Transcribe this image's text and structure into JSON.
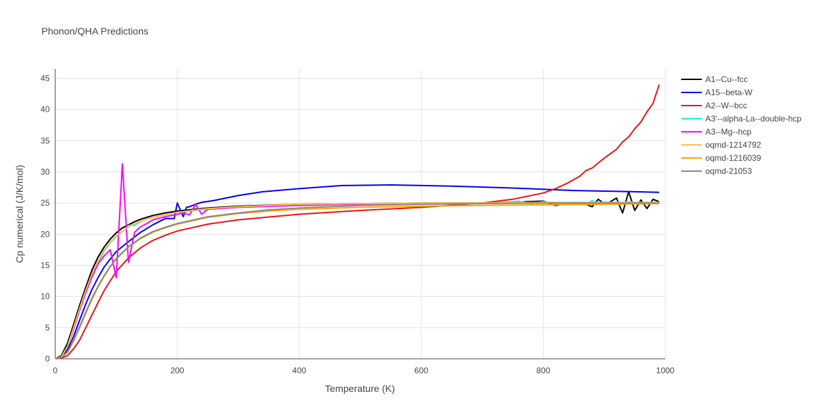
{
  "chart_data": {
    "type": "line",
    "title": "Phonon/QHA Predictions",
    "xlabel": "Temperature (K)",
    "ylabel": "Cp numerical (J/K/mol)",
    "xlim": [
      0,
      1000
    ],
    "ylim": [
      0,
      46.5
    ],
    "xticks": [
      0,
      200,
      400,
      600,
      800,
      1000
    ],
    "yticks": [
      0,
      5,
      10,
      15,
      20,
      25,
      30,
      35,
      40,
      45
    ],
    "grid": true,
    "legend": "right",
    "series": [
      {
        "name": "A1--Cu--fcc",
        "color": "#000000",
        "x": [
          0,
          10,
          20,
          30,
          40,
          50,
          60,
          70,
          80,
          90,
          100,
          110,
          120,
          130,
          140,
          150,
          160,
          180,
          200,
          250,
          300,
          400,
          500,
          600,
          700,
          800,
          820,
          850,
          870,
          880,
          890,
          900,
          910,
          920,
          930,
          940,
          950,
          960,
          970,
          980,
          990
        ],
        "y": [
          0,
          0.5,
          2.5,
          5.5,
          8.6,
          11.5,
          14.2,
          16.3,
          17.9,
          19.2,
          20.2,
          21.0,
          21.5,
          22.0,
          22.4,
          22.7,
          23.0,
          23.4,
          23.7,
          24.2,
          24.5,
          24.8,
          24.9,
          25.0,
          25.0,
          25.3,
          24.6,
          25.1,
          24.8,
          24.4,
          25.6,
          24.9,
          25.2,
          25.8,
          23.4,
          26.8,
          23.8,
          25.5,
          24.1,
          25.6,
          25.2
        ]
      },
      {
        "name": "A15--beta-W",
        "color": "#0000ee",
        "x": [
          0,
          10,
          20,
          30,
          40,
          50,
          60,
          70,
          80,
          90,
          100,
          120,
          140,
          160,
          180,
          195,
          200,
          210,
          215,
          220,
          230,
          240,
          260,
          280,
          300,
          340,
          400,
          470,
          550,
          650,
          750,
          850,
          900,
          950,
          990
        ],
        "y": [
          0,
          0.3,
          1.5,
          3.6,
          6.2,
          8.8,
          11.1,
          13.0,
          14.7,
          16.0,
          17.2,
          18.8,
          20.3,
          21.5,
          22.5,
          22.5,
          25.0,
          22.8,
          24.3,
          24.4,
          24.8,
          25.1,
          25.4,
          25.8,
          26.2,
          26.8,
          27.3,
          27.8,
          27.9,
          27.7,
          27.4,
          27.0,
          26.9,
          26.8,
          26.7
        ]
      },
      {
        "name": "A2--W--bcc",
        "color": "#ee1111",
        "x": [
          0,
          10,
          20,
          30,
          40,
          50,
          60,
          70,
          80,
          90,
          100,
          120,
          140,
          160,
          180,
          200,
          250,
          300,
          400,
          500,
          600,
          700,
          750,
          800,
          820,
          840,
          860,
          870,
          880,
          890,
          900,
          910,
          920,
          930,
          940,
          950,
          960,
          970,
          980,
          990
        ],
        "y": [
          0,
          0.1,
          0.5,
          1.6,
          3.0,
          5.0,
          7.0,
          9.0,
          10.9,
          12.5,
          14.0,
          16.2,
          17.8,
          19.0,
          19.8,
          20.5,
          21.6,
          22.3,
          23.2,
          23.8,
          24.3,
          25.0,
          25.6,
          26.6,
          27.3,
          28.2,
          29.3,
          30.2,
          30.6,
          31.4,
          32.2,
          32.9,
          33.6,
          34.8,
          35.6,
          36.9,
          38.0,
          39.6,
          41.0,
          44.0
        ]
      },
      {
        "name": "A3'--alpha-La--double-hcp",
        "color": "#22eeee",
        "x": [
          0,
          10,
          20,
          30,
          40,
          50,
          60,
          70,
          80,
          90,
          100,
          110,
          120,
          130,
          140,
          150,
          160,
          180,
          200,
          250,
          300,
          400,
          500,
          600,
          700,
          760,
          780,
          800,
          820,
          850,
          870,
          880,
          890,
          900,
          920,
          940,
          960,
          980,
          990
        ],
        "y": [
          0,
          0.3,
          2.0,
          4.8,
          7.9,
          10.8,
          13.3,
          15.4,
          17.2,
          18.6,
          19.6,
          20.4,
          21.4,
          21.4,
          22.0,
          22.4,
          22.7,
          23.1,
          23.5,
          24.0,
          24.4,
          24.7,
          24.8,
          24.9,
          24.9,
          25.3,
          24.9,
          25.2,
          24.8,
          25.0,
          24.7,
          25.4,
          24.8,
          25.2,
          24.9,
          25.2,
          24.9,
          25.1,
          24.9
        ]
      },
      {
        "name": "A3--Mg--hcp",
        "color": "#ff00ff",
        "x": [
          0,
          10,
          20,
          30,
          40,
          50,
          60,
          70,
          80,
          90,
          100,
          110,
          120,
          130,
          140,
          150,
          160,
          180,
          200,
          210,
          220,
          230,
          240,
          250,
          270,
          300,
          400,
          500,
          600,
          700,
          800,
          900,
          990
        ],
        "y": [
          0,
          0.3,
          2.0,
          4.7,
          7.8,
          10.6,
          13.1,
          15.2,
          16.5,
          17.5,
          13.0,
          31.3,
          15.5,
          20.3,
          21.2,
          21.7,
          22.3,
          22.8,
          23.2,
          23.4,
          23.1,
          24.8,
          23.2,
          24.0,
          24.1,
          24.3,
          24.6,
          24.8,
          24.9,
          25.0,
          25.0,
          25.0,
          25.0
        ]
      },
      {
        "name": "oqmd-1214792",
        "color": "#f5c242",
        "x": [
          0,
          10,
          20,
          30,
          40,
          50,
          60,
          70,
          80,
          90,
          100,
          120,
          140,
          160,
          180,
          200,
          250,
          300,
          400,
          500,
          600,
          700,
          800,
          900,
          990
        ],
        "y": [
          0,
          0.3,
          2.0,
          5.0,
          8.1,
          11.0,
          13.6,
          15.7,
          17.4,
          18.7,
          19.7,
          21.2,
          22.1,
          22.7,
          23.1,
          23.5,
          24.1,
          24.4,
          24.8,
          24.9,
          25.0,
          25.0,
          25.1,
          25.1,
          25.1
        ]
      },
      {
        "name": "oqmd-1216039",
        "color": "#ffa500",
        "x": [
          0,
          10,
          20,
          30,
          40,
          50,
          60,
          70,
          80,
          90,
          100,
          120,
          140,
          160,
          180,
          200,
          250,
          300,
          350,
          400,
          500,
          600,
          700,
          800,
          900,
          990
        ],
        "y": [
          0,
          0.2,
          1.0,
          2.8,
          5.0,
          7.3,
          9.5,
          11.5,
          13.2,
          14.7,
          16.0,
          17.9,
          19.3,
          20.3,
          21.0,
          21.6,
          22.7,
          23.3,
          23.7,
          24.0,
          24.3,
          24.5,
          24.6,
          24.7,
          24.8,
          24.9
        ]
      },
      {
        "name": "oqmd-21053",
        "color": "#888888",
        "x": [
          0,
          10,
          20,
          30,
          40,
          50,
          60,
          70,
          80,
          90,
          100,
          120,
          140,
          160,
          180,
          200,
          250,
          300,
          350,
          400,
          500,
          600,
          700,
          800,
          900,
          990
        ],
        "y": [
          0,
          0.2,
          1.1,
          3.0,
          5.2,
          7.5,
          9.7,
          11.6,
          13.3,
          14.8,
          16.1,
          18.0,
          19.4,
          20.4,
          21.1,
          21.7,
          22.8,
          23.4,
          23.9,
          24.2,
          24.6,
          24.8,
          24.9,
          25.0,
          25.0,
          25.0
        ]
      }
    ]
  }
}
